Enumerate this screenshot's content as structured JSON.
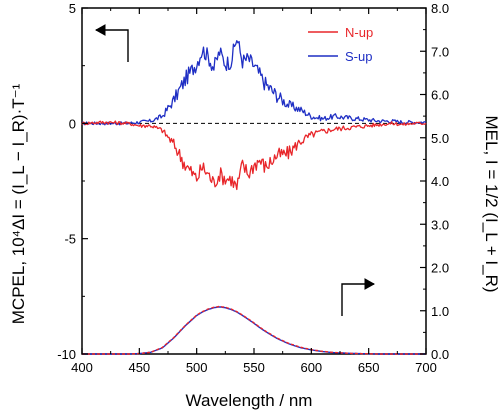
{
  "chart_data": {
    "type": "line",
    "xlabel": "Wavelength / nm",
    "ylabel_left": "MCPEL, 10⁴ΔI = (I_L − I_R)·T⁻¹",
    "ylabel_right": "MEL, I = 1/2 (I_L + I_R)",
    "xlim": [
      400,
      700
    ],
    "ylim_left": [
      -10,
      5
    ],
    "ylim_right": [
      0,
      8
    ],
    "xticks": [
      "400",
      "450",
      "500",
      "550",
      "600",
      "650",
      "700"
    ],
    "yticks_left": [
      "5",
      "0",
      "-5",
      "-10"
    ],
    "yticks_right": [
      "8.0",
      "7.0",
      "6.0",
      "5.0",
      "4.0",
      "3.0",
      "2.0",
      "1.0",
      "0.0"
    ],
    "legend_position": "top-right",
    "grid": false,
    "zero_line": "dashed",
    "colors": {
      "N-up": "#e8262a",
      "S-up": "#1f2fc4"
    },
    "x": [
      400,
      420,
      440,
      450,
      460,
      470,
      480,
      490,
      500,
      505,
      510,
      515,
      520,
      525,
      530,
      535,
      540,
      545,
      550,
      555,
      560,
      570,
      580,
      590,
      600,
      610,
      620,
      630,
      640,
      650,
      660,
      670,
      680,
      690,
      700
    ],
    "series": [
      {
        "name": "N-up",
        "axis": "left",
        "values": [
          0,
          0.05,
          0,
          -0.1,
          -0.1,
          -0.3,
          -0.9,
          -1.8,
          -2.4,
          -1.9,
          -2.2,
          -2.6,
          -2.2,
          -2.4,
          -2.4,
          -2.8,
          -1.8,
          -2.2,
          -1.8,
          -1.6,
          -1.9,
          -1.4,
          -1.3,
          -0.8,
          -0.5,
          -0.35,
          -0.25,
          -0.2,
          -0.15,
          -0.1,
          -0.05,
          0,
          -0.05,
          0,
          0
        ]
      },
      {
        "name": "S-up",
        "axis": "left",
        "values": [
          0,
          0,
          0,
          0.05,
          0.1,
          0.3,
          1.0,
          1.9,
          2.6,
          3.2,
          2.9,
          2.4,
          3.1,
          2.6,
          2.7,
          3.7,
          2.7,
          2.8,
          2.5,
          2.1,
          1.7,
          1.2,
          0.8,
          0.6,
          0.3,
          0.2,
          0.3,
          0.25,
          0.2,
          0.15,
          0.1,
          0.1,
          0.05,
          0.05,
          0.05
        ]
      },
      {
        "name": "EL N-up",
        "axis": "right",
        "values": [
          0,
          0,
          0,
          0.01,
          0.04,
          0.15,
          0.38,
          0.66,
          0.9,
          0.98,
          1.04,
          1.08,
          1.1,
          1.08,
          1.04,
          0.98,
          0.9,
          0.81,
          0.72,
          0.62,
          0.53,
          0.37,
          0.25,
          0.16,
          0.1,
          0.06,
          0.035,
          0.02,
          0.01,
          0.005,
          0,
          0,
          0,
          0,
          0
        ]
      },
      {
        "name": "EL S-up",
        "axis": "right",
        "values": [
          0,
          0,
          0,
          0.01,
          0.04,
          0.14,
          0.37,
          0.65,
          0.89,
          0.97,
          1.03,
          1.07,
          1.09,
          1.07,
          1.03,
          0.97,
          0.89,
          0.8,
          0.71,
          0.61,
          0.52,
          0.36,
          0.24,
          0.15,
          0.095,
          0.055,
          0.03,
          0.02,
          0.01,
          0.005,
          0,
          0,
          0,
          0,
          0
        ]
      }
    ],
    "legend": [
      {
        "label": "N-up",
        "series": "N-up"
      },
      {
        "label": "S-up",
        "series": "S-up"
      }
    ],
    "annotations": [
      {
        "type": "arrow",
        "direction": "left",
        "meaning": "left-axis"
      },
      {
        "type": "arrow",
        "direction": "right",
        "meaning": "right-axis"
      }
    ]
  }
}
